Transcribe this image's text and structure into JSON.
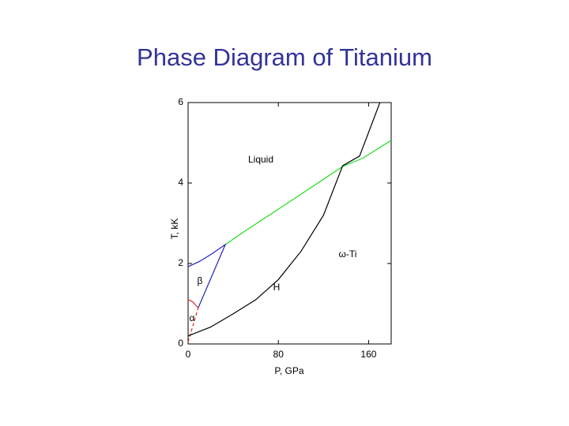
{
  "chart_data": {
    "type": "line",
    "title": "Phase Diagram of Titanium",
    "xlabel": "P, GPa",
    "ylabel": "T, kK",
    "xlim": [
      0,
      180
    ],
    "ylim": [
      0,
      6
    ],
    "xticks": [
      0,
      80,
      160
    ],
    "yticks": [
      0,
      2,
      4,
      6
    ],
    "annotations": [
      "Liquid",
      "ω-Ti",
      "β",
      "H",
      "α"
    ],
    "series": [
      {
        "color": "#22dd22",
        "x": [
          33,
          50,
          80,
          100,
          137,
          155,
          180
        ],
        "values": [
          2.47,
          2.8,
          3.35,
          3.72,
          4.41,
          4.62,
          5.06
        ]
      },
      {
        "color": "#2222bb",
        "x": [
          0,
          10,
          20,
          33,
          9
        ],
        "values": [
          1.92,
          2.05,
          2.22,
          2.47,
          0.9
        ]
      },
      {
        "color": "#dd2222",
        "x": [
          0,
          4,
          9
        ],
        "values": [
          1.1,
          1.05,
          0.9
        ]
      },
      {
        "color": "#dd2222",
        "dashed": true,
        "x": [
          0,
          9
        ],
        "values": [
          0.05,
          0.9
        ]
      },
      {
        "color": "#000000",
        "x": [
          0,
          20,
          40,
          60,
          80,
          100,
          120,
          137,
          152,
          170
        ],
        "values": [
          0.2,
          0.42,
          0.75,
          1.1,
          1.6,
          2.3,
          3.2,
          4.43,
          4.67,
          6
        ]
      }
    ]
  }
}
